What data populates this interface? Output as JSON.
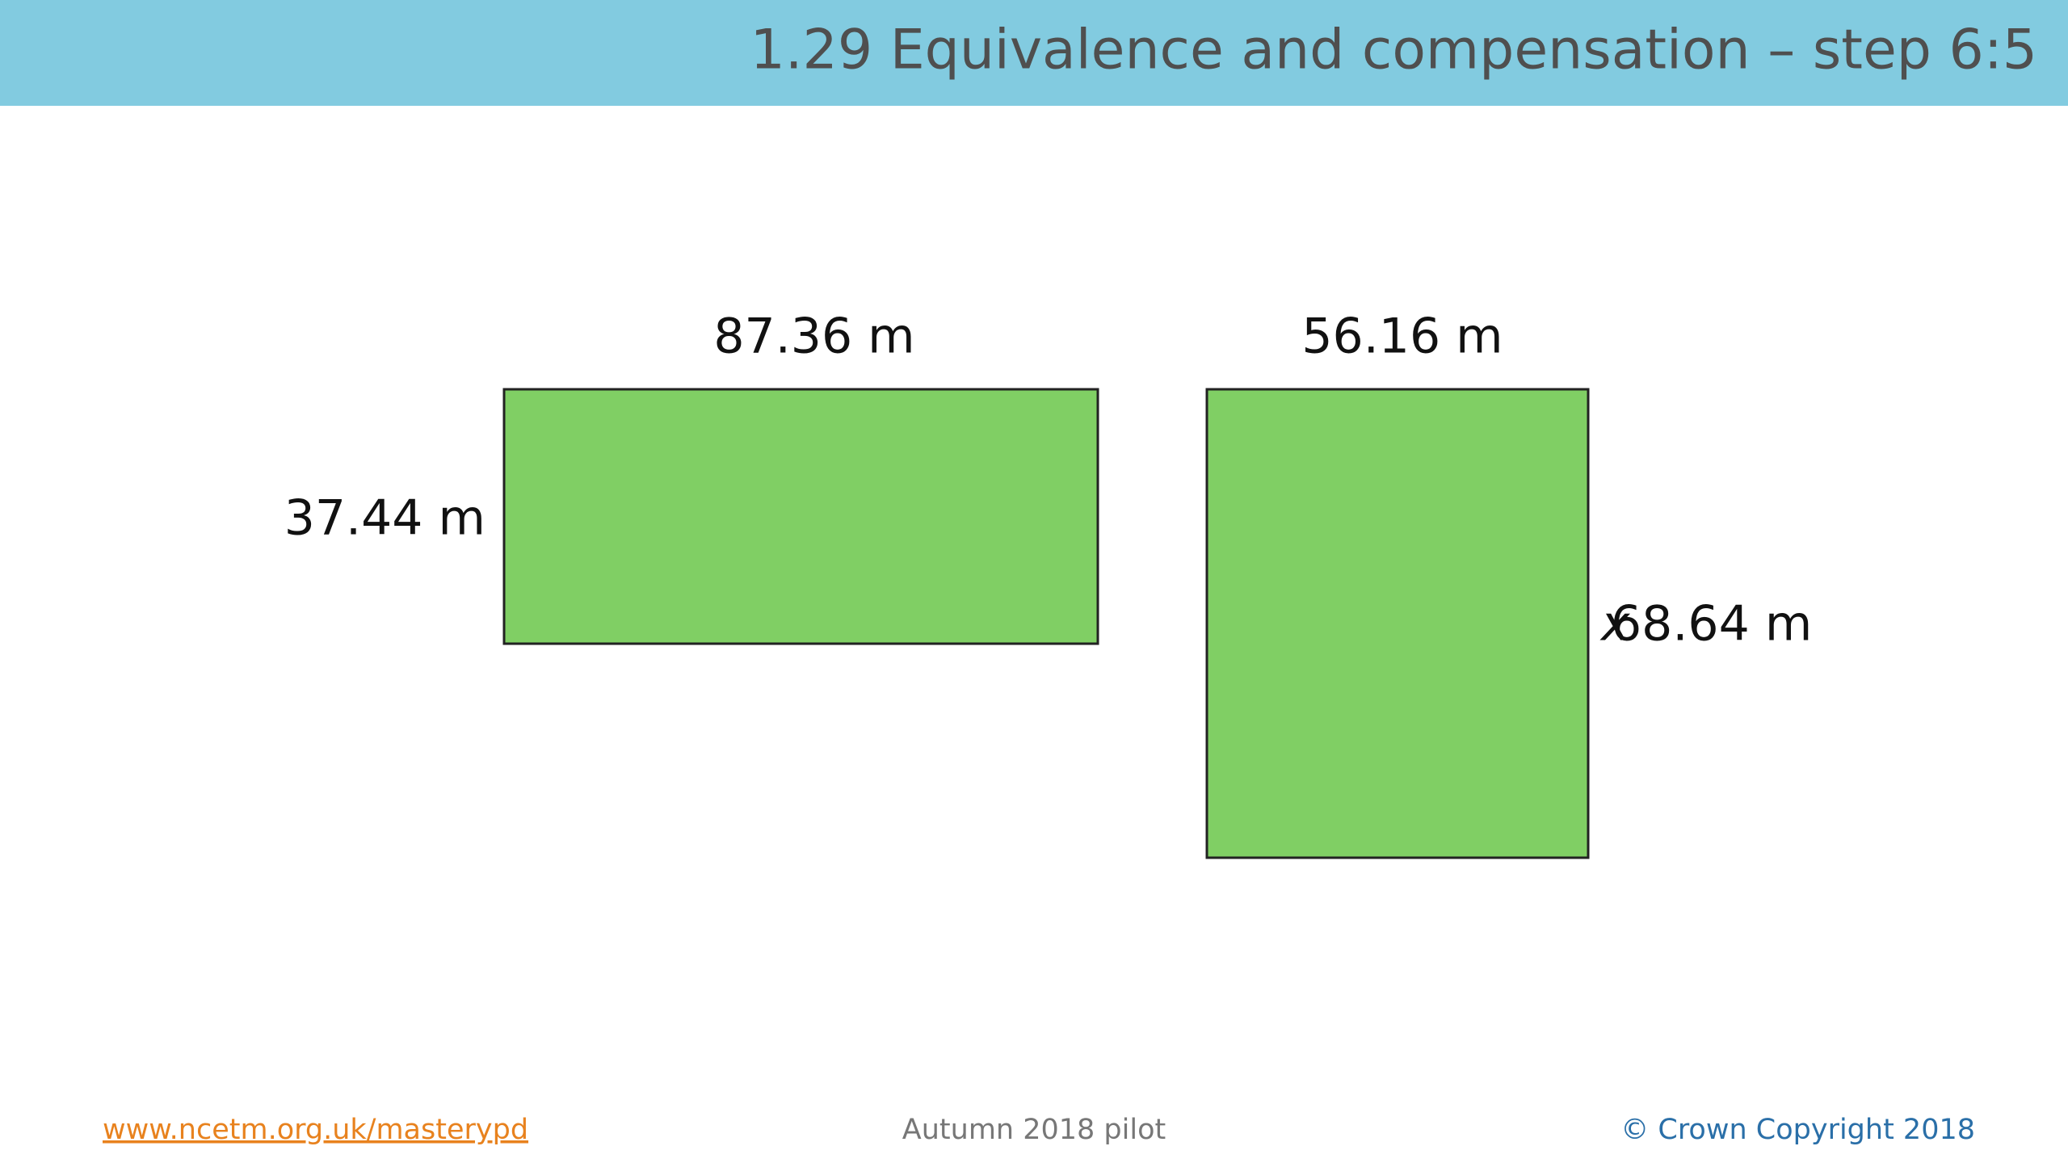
{
  "header": {
    "title": "1.29 Equivalence and compensation – step 6:5"
  },
  "shapes": [
    {
      "top_label": "87.36 m",
      "side_label": "37.44 m"
    },
    {
      "top_label": "56.16 m",
      "side_label_mark": "x",
      "side_label": "68.64 m"
    }
  ],
  "footer": {
    "link": "www.ncetm.org.uk/masterypd",
    "center": "Autumn 2018 pilot",
    "copyright": "© Crown Copyright 2018"
  }
}
